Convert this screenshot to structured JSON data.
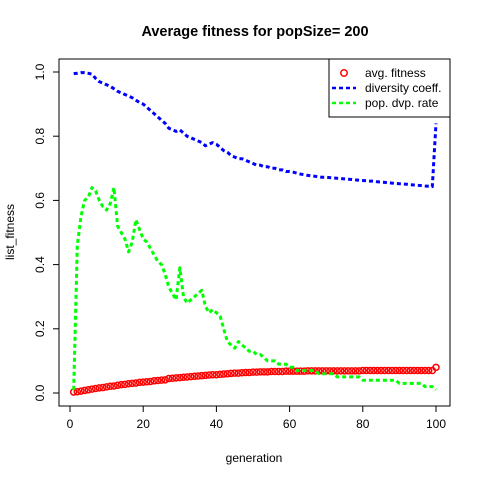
{
  "chart_data": {
    "type": "line",
    "title": "Average fitness for popSize= 200",
    "xlabel": "generation",
    "ylabel": "list_fitness",
    "xlim": [
      0,
      100
    ],
    "ylim": [
      0,
      1.0
    ],
    "x_ticks": [
      0,
      20,
      40,
      60,
      80,
      100
    ],
    "y_ticks": [
      0.0,
      0.2,
      0.4,
      0.6,
      0.8,
      1.0
    ],
    "x_tick_labels": [
      "0",
      "20",
      "40",
      "60",
      "80",
      "100"
    ],
    "y_tick_labels": [
      "0.0",
      "0.2",
      "0.4",
      "0.6",
      "0.8",
      "1.0"
    ],
    "grid": false,
    "legend_position": "top-right",
    "series": [
      {
        "name": "avg. fitness",
        "style": "points",
        "color": "#ff0000",
        "x": [
          1,
          2,
          3,
          4,
          5,
          6,
          7,
          8,
          9,
          10,
          11,
          12,
          13,
          14,
          15,
          16,
          17,
          18,
          19,
          20,
          21,
          22,
          23,
          24,
          25,
          26,
          27,
          28,
          29,
          30,
          31,
          32,
          33,
          34,
          35,
          36,
          37,
          38,
          39,
          40,
          41,
          42,
          43,
          44,
          45,
          46,
          47,
          48,
          49,
          50,
          51,
          52,
          53,
          54,
          55,
          56,
          57,
          58,
          59,
          60,
          61,
          62,
          63,
          64,
          65,
          66,
          67,
          68,
          69,
          70,
          71,
          72,
          73,
          74,
          75,
          76,
          77,
          78,
          79,
          80,
          81,
          82,
          83,
          84,
          85,
          86,
          87,
          88,
          89,
          90,
          91,
          92,
          93,
          94,
          95,
          96,
          97,
          98,
          99,
          100
        ],
        "y": [
          0.003,
          0.004,
          0.006,
          0.008,
          0.01,
          0.012,
          0.014,
          0.016,
          0.017,
          0.019,
          0.021,
          0.022,
          0.024,
          0.026,
          0.027,
          0.029,
          0.03,
          0.031,
          0.033,
          0.034,
          0.035,
          0.036,
          0.038,
          0.039,
          0.04,
          0.041,
          0.045,
          0.046,
          0.047,
          0.048,
          0.049,
          0.05,
          0.051,
          0.052,
          0.053,
          0.054,
          0.055,
          0.056,
          0.057,
          0.057,
          0.058,
          0.059,
          0.06,
          0.061,
          0.062,
          0.062,
          0.063,
          0.064,
          0.064,
          0.065,
          0.065,
          0.066,
          0.066,
          0.066,
          0.067,
          0.067,
          0.067,
          0.067,
          0.068,
          0.068,
          0.068,
          0.068,
          0.068,
          0.068,
          0.069,
          0.069,
          0.069,
          0.069,
          0.069,
          0.069,
          0.069,
          0.069,
          0.069,
          0.069,
          0.069,
          0.069,
          0.069,
          0.069,
          0.069,
          0.07,
          0.07,
          0.07,
          0.07,
          0.07,
          0.07,
          0.07,
          0.07,
          0.07,
          0.07,
          0.07,
          0.07,
          0.07,
          0.07,
          0.07,
          0.07,
          0.07,
          0.07,
          0.07,
          0.07,
          0.08
        ]
      },
      {
        "name": "diversity coeff.",
        "style": "dashed",
        "color": "#0000ff",
        "x": [
          1,
          2,
          3,
          4,
          5,
          6,
          7,
          8,
          9,
          10,
          11,
          12,
          13,
          14,
          15,
          16,
          17,
          18,
          19,
          20,
          21,
          22,
          23,
          24,
          25,
          26,
          27,
          28,
          29,
          30,
          31,
          32,
          33,
          34,
          35,
          36,
          37,
          38,
          39,
          40,
          41,
          42,
          43,
          44,
          45,
          46,
          47,
          48,
          49,
          50,
          51,
          52,
          53,
          54,
          55,
          56,
          57,
          58,
          59,
          60,
          61,
          62,
          63,
          64,
          65,
          66,
          67,
          68,
          69,
          70,
          71,
          72,
          73,
          74,
          75,
          76,
          77,
          78,
          79,
          80,
          81,
          82,
          83,
          84,
          85,
          86,
          87,
          88,
          89,
          90,
          91,
          92,
          93,
          94,
          95,
          96,
          97,
          98,
          99,
          100
        ],
        "y": [
          0.995,
          0.996,
          0.998,
          0.998,
          0.996,
          0.993,
          0.98,
          0.97,
          0.965,
          0.96,
          0.955,
          0.948,
          0.94,
          0.935,
          0.93,
          0.925,
          0.92,
          0.912,
          0.905,
          0.9,
          0.89,
          0.88,
          0.87,
          0.86,
          0.85,
          0.84,
          0.825,
          0.82,
          0.815,
          0.82,
          0.81,
          0.8,
          0.795,
          0.79,
          0.785,
          0.78,
          0.77,
          0.775,
          0.78,
          0.775,
          0.765,
          0.755,
          0.75,
          0.74,
          0.735,
          0.73,
          0.73,
          0.725,
          0.72,
          0.715,
          0.71,
          0.71,
          0.705,
          0.705,
          0.7,
          0.7,
          0.695,
          0.695,
          0.69,
          0.69,
          0.688,
          0.685,
          0.682,
          0.68,
          0.678,
          0.676,
          0.675,
          0.673,
          0.672,
          0.672,
          0.671,
          0.67,
          0.669,
          0.668,
          0.667,
          0.666,
          0.665,
          0.664,
          0.663,
          0.662,
          0.661,
          0.66,
          0.66,
          0.658,
          0.657,
          0.656,
          0.655,
          0.654,
          0.653,
          0.652,
          0.651,
          0.65,
          0.649,
          0.648,
          0.647,
          0.646,
          0.645,
          0.644,
          0.643,
          0.84
        ]
      },
      {
        "name": "pop. dvp. rate",
        "style": "dashed",
        "color": "#00ff00",
        "x": [
          1,
          2,
          3,
          4,
          5,
          6,
          7,
          8,
          9,
          10,
          11,
          12,
          13,
          14,
          15,
          16,
          17,
          18,
          19,
          20,
          21,
          22,
          23,
          24,
          25,
          26,
          27,
          28,
          29,
          30,
          31,
          32,
          33,
          34,
          35,
          36,
          37,
          38,
          39,
          40,
          41,
          42,
          43,
          44,
          45,
          46,
          47,
          48,
          49,
          50,
          51,
          52,
          53,
          54,
          55,
          56,
          57,
          58,
          59,
          60,
          61,
          62,
          63,
          64,
          65,
          66,
          67,
          68,
          69,
          70,
          71,
          72,
          73,
          74,
          75,
          76,
          77,
          78,
          79,
          80,
          81,
          82,
          83,
          84,
          85,
          86,
          87,
          88,
          89,
          90,
          91,
          92,
          93,
          94,
          95,
          96,
          97,
          98,
          99,
          100
        ],
        "y": [
          0.01,
          0.46,
          0.55,
          0.6,
          0.61,
          0.64,
          0.63,
          0.6,
          0.58,
          0.57,
          0.59,
          0.64,
          0.52,
          0.5,
          0.48,
          0.44,
          0.47,
          0.54,
          0.51,
          0.48,
          0.47,
          0.45,
          0.43,
          0.41,
          0.4,
          0.37,
          0.33,
          0.31,
          0.29,
          0.39,
          0.3,
          0.28,
          0.29,
          0.3,
          0.31,
          0.32,
          0.27,
          0.25,
          0.26,
          0.25,
          0.24,
          0.2,
          0.16,
          0.15,
          0.14,
          0.16,
          0.15,
          0.14,
          0.13,
          0.13,
          0.12,
          0.12,
          0.11,
          0.1,
          0.1,
          0.1,
          0.09,
          0.09,
          0.09,
          0.08,
          0.08,
          0.07,
          0.07,
          0.07,
          0.07,
          0.07,
          0.07,
          0.06,
          0.06,
          0.06,
          0.06,
          0.06,
          0.05,
          0.05,
          0.05,
          0.05,
          0.05,
          0.05,
          0.05,
          0.04,
          0.04,
          0.04,
          0.04,
          0.04,
          0.04,
          0.04,
          0.04,
          0.04,
          0.04,
          0.03,
          0.03,
          0.03,
          0.03,
          0.03,
          0.03,
          0.03,
          0.02,
          0.02,
          0.02,
          0.01
        ]
      }
    ],
    "legend": [
      {
        "label": "avg. fitness",
        "symbol": "circle",
        "color": "#ff0000"
      },
      {
        "label": "diversity coeff.",
        "symbol": "dashed-line",
        "color": "#0000ff"
      },
      {
        "label": "pop. dvp. rate",
        "symbol": "dashed-line",
        "color": "#00ff00"
      }
    ]
  }
}
